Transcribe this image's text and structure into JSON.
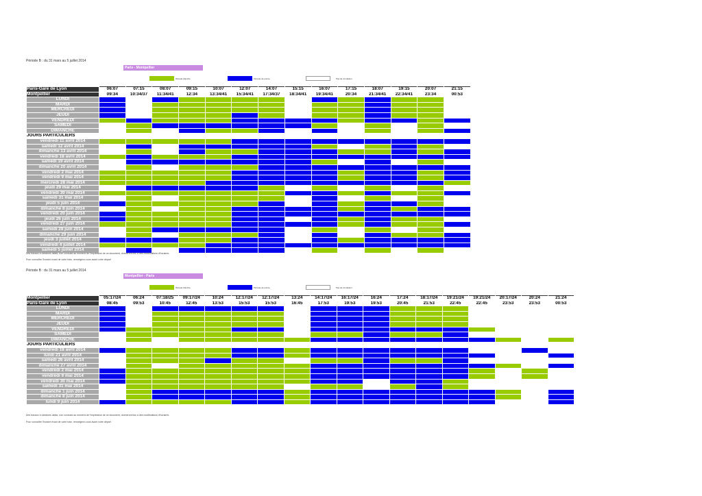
{
  "colors": {
    "green": "#99cc00",
    "blue": "#0000ee",
    "header": "#333333",
    "day": "#a8a8a8",
    "route": "#c98be0"
  },
  "legend": [
    "Période blanche",
    "Période de pointe",
    "Pas de circulation"
  ],
  "notes": [
    "Des travaux à certaines dates, non connues au moment de l'impression de ce document, donneront lieu à des modifications d'horaires.",
    "Pour connaître l'horaire exact de votre train, renseignez-vous avant votre départ"
  ],
  "sections": [
    {
      "period": "Période B : du 31 mars au 5 juillet 2014",
      "route": "Paris - Montpellier",
      "station1": "Paris-Gare de Lyon",
      "station2": "Montpellier",
      "dep": [
        "06:07",
        "07:15",
        "08:07",
        "09:15",
        "10:07",
        "12:07",
        "14:07",
        "15:15",
        "16:07",
        "17:15",
        "18:07",
        "19:15",
        "20:07",
        "21:15"
      ],
      "arr": [
        "09:34",
        "10:34/37",
        "11:34/41",
        "12:34",
        "13:34/41",
        "15:34/41",
        "17:34/37",
        "18:34/41",
        "19:34/41",
        "20:34",
        "21:34/41",
        "22:34/41",
        "23:34",
        "00:53"
      ],
      "days": [
        {
          "label": "LUNDI",
          "c": "BWBGGGGWBGBGGW"
        },
        {
          "label": "MARDI",
          "c": "BWGGGGGWGGBGGW"
        },
        {
          "label": "MERCREDI",
          "c": "BWGGGGGWGGBGGW"
        },
        {
          "label": "JEUDI",
          "c": "BWGGGBGWGGBGGW"
        },
        {
          "label": "VENDREDI",
          "c": "GBGGGBBBBGBBGB"
        },
        {
          "label": "SAMEDI",
          "c": "WGBBBBBBGWGWGW"
        },
        {
          "label": "DIMANCHE",
          "c": "WGWBGGBWBWGWGB"
        }
      ],
      "special_label": "JOURS PARTICULIERS",
      "special": [
        {
          "label": "vendredi 11 avril 2014",
          "c": "GGGGGBBBBBBBBB"
        },
        {
          "label": "samedi 12 avril 2014",
          "c": "WBWBBBBBGWGBGW"
        },
        {
          "label": "dimanche 13 avril 2014",
          "c": "WGWBGGBBBGGBGB"
        },
        {
          "label": "vendredi 18 avril 2014",
          "c": "GBGGGBBBBBBBBB"
        },
        {
          "label": "samedi 19 avril 2014",
          "c": "WBBBBBBBGWBWGW"
        },
        {
          "label": "dimanche 20 avril 2014",
          "c": "WGWGGGBBBBBBBB"
        },
        {
          "label": "vendredi 2 mai 2014",
          "c": "GGGGGBBBBGBBGB"
        },
        {
          "label": "vendredi 9 mai 2014",
          "c": "GGGGGBBBBGBBGB"
        },
        {
          "label": "mercredi 28 mai 2014",
          "c": "GGGGBBBBBBBBBG"
        },
        {
          "label": "jeudi 29 mai 2014",
          "c": "WBBBBBGWGWGWGW"
        },
        {
          "label": "vendredi 30 mai 2014",
          "c": "GGGGGGGBBGBGGB"
        },
        {
          "label": "samedi 31 mai 2014",
          "c": "WGWGGGGWBWGWGW"
        },
        {
          "label": "jeudi 5 juin 2014",
          "c": "BGGGGGBWBGBBGW"
        },
        {
          "label": "dimanche 8 juin 2014",
          "c": "WGWGGBBBBGBGBB"
        },
        {
          "label": "vendredi 20 juin 2014",
          "c": "BGGGGBBBBBBBBB"
        },
        {
          "label": "jeudi 26 juin 2014",
          "c": "BGGGGBBWBGBGGW"
        },
        {
          "label": "vendredi 27 juin 2014",
          "c": "GGGGGBBBBGBGGB"
        },
        {
          "label": "samedi 28 juin 2014",
          "c": "WGBBBBBWGWGWGW"
        },
        {
          "label": "dimanche 29 juin 2014",
          "c": "WGWGGGBWBWBGGB"
        },
        {
          "label": "jeudi 3 juillet 2014",
          "c": "BBBGGBBWBGBBBB"
        },
        {
          "label": "vendredi 4 juillet 2014",
          "c": "GGGGBBBBBBBBBB"
        },
        {
          "label": "samedi 5 juillet 2014",
          "c": "WBWBBBBWGWGWGW"
        }
      ]
    },
    {
      "period": "Période B : du 31 mars au 5 juillet 2014",
      "route": "Montpellier - Paris",
      "station1": "Montpellier",
      "station2": "Paris-Gare de Lyon",
      "dep": [
        "05:17/24",
        "06:24",
        "07:18/25",
        "09:17/24",
        "10:24",
        "12:17/24",
        "12:17/24",
        "13:24",
        "14:17/24",
        "16:17/24",
        "16:24",
        "17:24",
        "18:17/24",
        "19:21/24",
        "19:21/24",
        "20:17/24",
        "20:24",
        "21:24"
      ],
      "arr": [
        "08:45",
        "09:53",
        "10:45",
        "12:45",
        "13:53",
        "15:53",
        "15:53",
        "16:45",
        "17:53",
        "19:53",
        "19:53",
        "20:45",
        "21:53",
        "22:45",
        "22:45",
        "23:53",
        "23:53",
        "00:53"
      ],
      "days": [
        {
          "label": "LUNDI",
          "c": "BWBBBBBWBBBGGGWWWW"
        },
        {
          "label": "MARDI",
          "c": "BWGGGGGWBBBGGGWWWW"
        },
        {
          "label": "MERCREDI",
          "c": "BWGGGGGWBBBGGGWWWW"
        },
        {
          "label": "JEUDI",
          "c": "BWGGGGGWBBBGGGWWWW"
        },
        {
          "label": "VENDREDI",
          "c": "BGGGGBBWBBBBBBGWWW"
        },
        {
          "label": "SAMEDI",
          "c": "WGGGGGGWGGBGGBWWWW"
        },
        {
          "label": "DIMANCHE",
          "c": "WGWGGGGGBBBBBBBGWG"
        }
      ],
      "special_label": "JOURS PARTICULIERS",
      "special": [
        {
          "label": "vendredi 18 avril 2014",
          "c": "BGGGGBBGBBBBBBWWBW"
        },
        {
          "label": "lundi 21 avril 2014",
          "c": "WGGGGBBGBBBBBBBWWB"
        },
        {
          "label": "samedi 26 avril 2014",
          "c": "WGGGBGGWGGBGGBWWWW"
        },
        {
          "label": "dimanche 27 avril 2014",
          "c": "WGWGGGGGBBBBBBBGWB"
        },
        {
          "label": "vendredi 2 mai 2014",
          "c": "BGGGGGGGBBBBBBGWGW"
        },
        {
          "label": "vendredi 9 mai 2014",
          "c": "BGGGGGGGBBBBBBGWGW"
        },
        {
          "label": "vendredi 30 mai 2014",
          "c": "BGGGGGGGBBWBBGWWWW"
        },
        {
          "label": "samedi 31 mai 2014",
          "c": "WGGGGGGWGGWGBGWWWW"
        },
        {
          "label": "dimanche 1 juin 2014",
          "c": "WGBBBBBGBBBBBBBGWB"
        },
        {
          "label": "dimanche 8 juin 2014",
          "c": "WGBBBBBGBBBBBBBGWB"
        },
        {
          "label": "lundi 9 juin 2014",
          "c": "BGGGGBBGBBBBBBBWWB"
        }
      ]
    }
  ]
}
